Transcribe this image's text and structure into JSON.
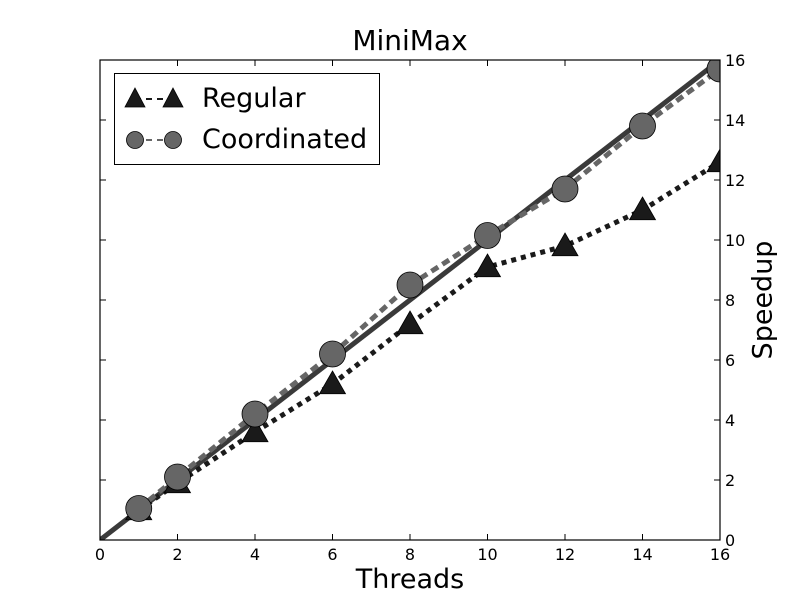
{
  "chart_data": {
    "type": "line",
    "title": "MiniMax",
    "xlabel": "Threads",
    "ylabel": "Speedup",
    "xlim": [
      0,
      16
    ],
    "ylim": [
      0,
      16
    ],
    "x_ticks": [
      "0",
      "2",
      "4",
      "6",
      "8",
      "10",
      "12",
      "14",
      "16"
    ],
    "y_ticks": [
      "0",
      "2",
      "4",
      "6",
      "8",
      "10",
      "12",
      "14",
      "16"
    ],
    "y_axis_side": "right",
    "grid": false,
    "legend_position": "top-left",
    "x": [
      1,
      2,
      4,
      6,
      8,
      10,
      12,
      14,
      16
    ],
    "series": [
      {
        "name": "Regular",
        "marker": "triangle",
        "line_style": "dotted",
        "color": "#1a1a1a",
        "values": [
          1.0,
          1.9,
          3.6,
          5.2,
          7.2,
          9.1,
          9.8,
          11.0,
          12.6
        ]
      },
      {
        "name": "Coordinated",
        "marker": "circle",
        "line_style": "dashed",
        "color": "#666666",
        "values": [
          1.05,
          2.1,
          4.2,
          6.2,
          8.5,
          10.15,
          11.7,
          13.8,
          15.7
        ]
      }
    ],
    "reference_line": {
      "x": [
        0,
        16
      ],
      "y": [
        0,
        16
      ],
      "color": "#3a3a3a",
      "line_style": "solid"
    }
  }
}
